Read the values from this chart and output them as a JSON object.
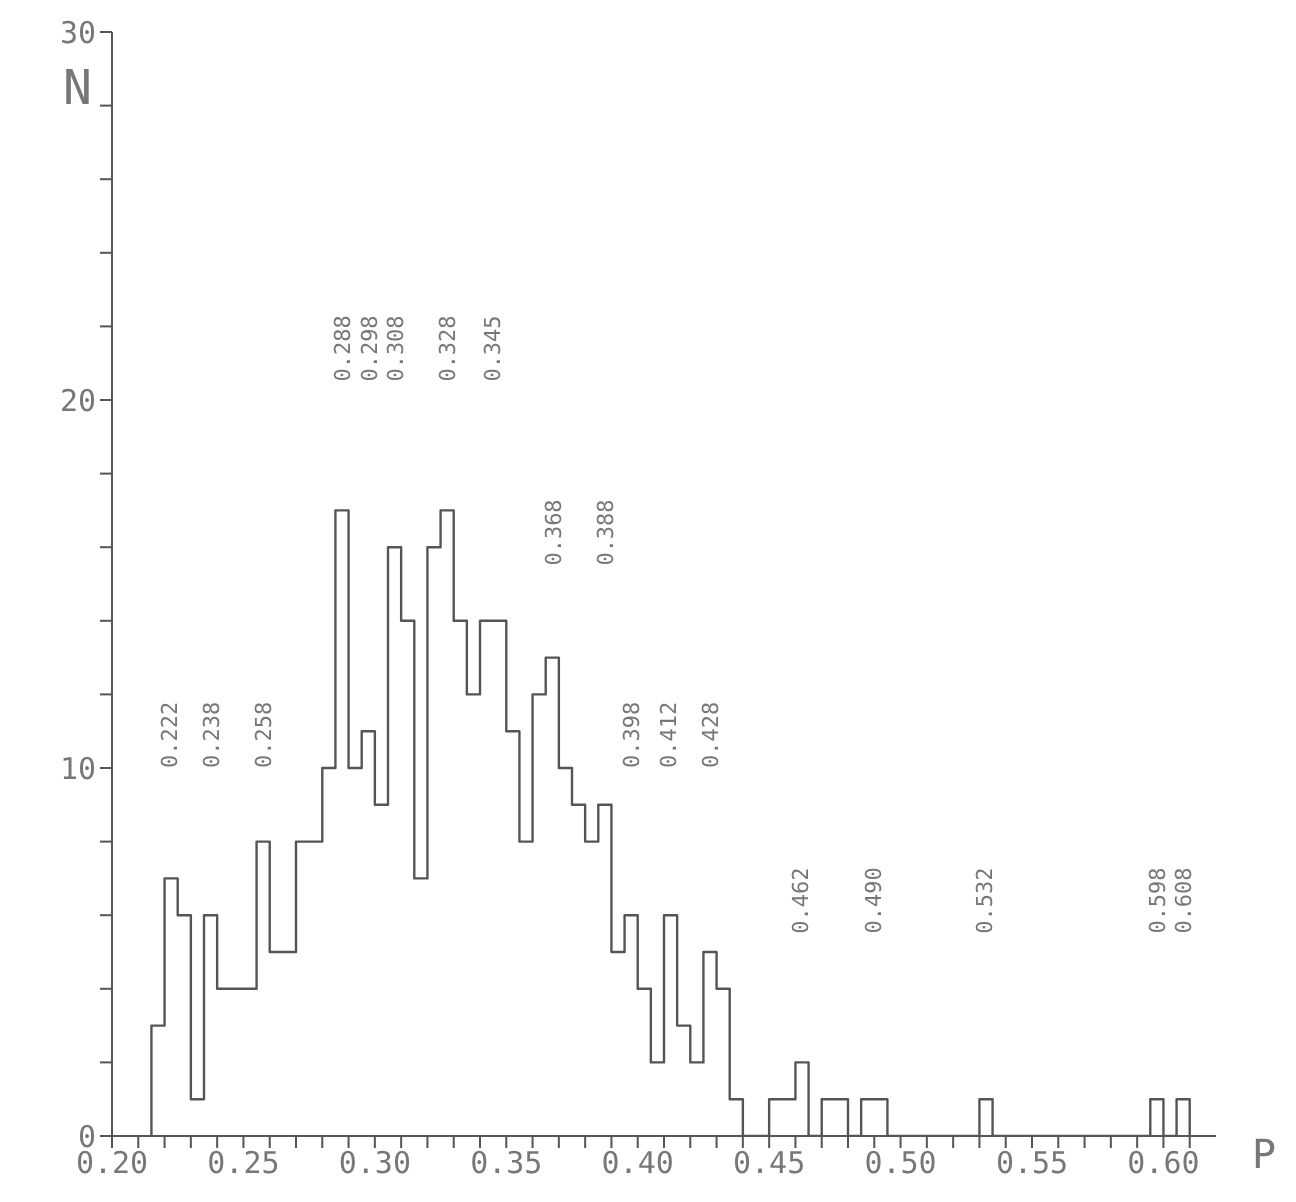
{
  "chart_data": {
    "type": "histogram",
    "xlabel": "P",
    "ylabel": "N",
    "color": "#555555",
    "bins": [
      0.215,
      0.22,
      0.225,
      0.23,
      0.235,
      0.24,
      0.245,
      0.25,
      0.255,
      0.26,
      0.265,
      0.27,
      0.275,
      0.28,
      0.285,
      0.29,
      0.295,
      0.3,
      0.305,
      0.31,
      0.315,
      0.32,
      0.325,
      0.33,
      0.335,
      0.34,
      0.345,
      0.35,
      0.355,
      0.36,
      0.365,
      0.37,
      0.375,
      0.38,
      0.385,
      0.39,
      0.395,
      0.4,
      0.405,
      0.41,
      0.415,
      0.42,
      0.425,
      0.43,
      0.435,
      0.44,
      0.445,
      0.45,
      0.455,
      0.46,
      0.465,
      0.47,
      0.475,
      0.48,
      0.485,
      0.49,
      0.495,
      0.5,
      0.505,
      0.51,
      0.515,
      0.52,
      0.525,
      0.53,
      0.535,
      0.54,
      0.545,
      0.55,
      0.555,
      0.56,
      0.565,
      0.57,
      0.575,
      0.58,
      0.585,
      0.59,
      0.595,
      0.6,
      0.605,
      0.61
    ],
    "values": [
      3,
      7,
      6,
      1,
      6,
      4,
      4,
      4,
      8,
      5,
      5,
      8,
      8,
      10,
      17,
      10,
      11,
      9,
      16,
      14,
      7,
      16,
      17,
      14,
      12,
      14,
      14,
      11,
      8,
      12,
      13,
      10,
      9,
      8,
      9,
      5,
      6,
      4,
      2,
      6,
      3,
      2,
      5,
      4,
      1,
      0,
      0,
      1,
      1,
      2,
      0,
      1,
      1,
      0,
      1,
      1,
      0,
      0,
      0,
      0,
      0,
      0,
      0,
      1,
      0,
      0,
      0,
      0,
      0,
      0,
      0,
      0,
      0,
      0,
      0,
      0,
      1,
      0,
      1
    ],
    "xlim": [
      0.2,
      0.62
    ],
    "xticks": [
      {
        "value": 0.2,
        "label": "0.20"
      },
      {
        "value": 0.21,
        "label": null
      },
      {
        "value": 0.22,
        "label": null
      },
      {
        "value": 0.23,
        "label": null
      },
      {
        "value": 0.24,
        "label": null
      },
      {
        "value": 0.25,
        "label": "0.25"
      },
      {
        "value": 0.26,
        "label": null
      },
      {
        "value": 0.27,
        "label": null
      },
      {
        "value": 0.28,
        "label": null
      },
      {
        "value": 0.29,
        "label": null
      },
      {
        "value": 0.3,
        "label": "0.30"
      },
      {
        "value": 0.31,
        "label": null
      },
      {
        "value": 0.32,
        "label": null
      },
      {
        "value": 0.33,
        "label": null
      },
      {
        "value": 0.34,
        "label": null
      },
      {
        "value": 0.35,
        "label": "0.35"
      },
      {
        "value": 0.36,
        "label": null
      },
      {
        "value": 0.37,
        "label": null
      },
      {
        "value": 0.38,
        "label": null
      },
      {
        "value": 0.39,
        "label": null
      },
      {
        "value": 0.4,
        "label": "0.40"
      },
      {
        "value": 0.41,
        "label": null
      },
      {
        "value": 0.42,
        "label": null
      },
      {
        "value": 0.43,
        "label": null
      },
      {
        "value": 0.44,
        "label": null
      },
      {
        "value": 0.45,
        "label": "0.45"
      },
      {
        "value": 0.46,
        "label": null
      },
      {
        "value": 0.47,
        "label": null
      },
      {
        "value": 0.48,
        "label": null
      },
      {
        "value": 0.49,
        "label": null
      },
      {
        "value": 0.5,
        "label": "0.50"
      },
      {
        "value": 0.51,
        "label": null
      },
      {
        "value": 0.52,
        "label": null
      },
      {
        "value": 0.53,
        "label": null
      },
      {
        "value": 0.54,
        "label": null
      },
      {
        "value": 0.55,
        "label": "0.55"
      },
      {
        "value": 0.56,
        "label": null
      },
      {
        "value": 0.57,
        "label": null
      },
      {
        "value": 0.58,
        "label": null
      },
      {
        "value": 0.59,
        "label": null
      },
      {
        "value": 0.6,
        "label": "0.60"
      },
      {
        "value": 0.61,
        "label": null
      }
    ],
    "ylim": [
      0,
      30
    ],
    "yticks": [
      0,
      {
        "value": 2,
        "label": null
      },
      {
        "value": 4,
        "label": null
      },
      {
        "value": 6,
        "label": null
      },
      {
        "value": 8,
        "label": null
      },
      10,
      {
        "value": 12,
        "label": null
      },
      {
        "value": 14,
        "label": null
      },
      {
        "value": 16,
        "label": null
      },
      {
        "value": 18,
        "label": null
      },
      20,
      {
        "value": 22,
        "label": null
      },
      {
        "value": 24,
        "label": null
      },
      {
        "value": 26,
        "label": null
      },
      {
        "value": 28,
        "label": null
      },
      30
    ],
    "grid": false,
    "annotations": [
      "0.222",
      "0.238",
      "0.258",
      "0.288",
      "0.298",
      "0.308",
      "0.328",
      "0.345",
      "0.368",
      "0.388",
      "0.398",
      "0.412",
      "0.428",
      "0.462",
      "0.490",
      "0.532",
      "0.598",
      "0.608"
    ]
  }
}
